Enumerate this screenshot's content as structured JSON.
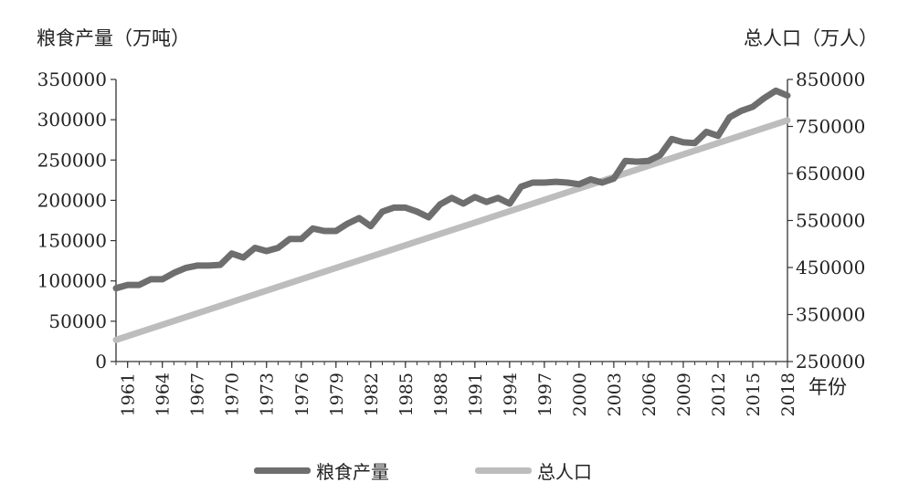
{
  "chart_data": {
    "type": "line",
    "left_axis_label": "粮食产量（万吨）",
    "right_axis_label": "总人口（万人）",
    "xlabel": "年份",
    "ylim_left": [
      0,
      350000
    ],
    "ylim_right": [
      250000,
      850000
    ],
    "y_ticks_left": [
      0,
      50000,
      100000,
      150000,
      200000,
      250000,
      300000,
      350000
    ],
    "y_ticks_right": [
      250000,
      350000,
      450000,
      550000,
      650000,
      750000,
      850000
    ],
    "x_ticks": [
      1961,
      1964,
      1967,
      1970,
      1973,
      1976,
      1979,
      1982,
      1985,
      1988,
      1991,
      1994,
      1997,
      2000,
      2003,
      2006,
      2009,
      2012,
      2015,
      2018
    ],
    "x_range": [
      1960,
      2018
    ],
    "grid": false,
    "legend_position": "bottom",
    "series": [
      {
        "name": "粮食产量",
        "axis": "left",
        "color": "#6e6e6e",
        "x": [
          1960,
          1961,
          1962,
          1963,
          1964,
          1965,
          1966,
          1967,
          1968,
          1969,
          1970,
          1971,
          1972,
          1973,
          1974,
          1975,
          1976,
          1977,
          1978,
          1979,
          1980,
          1981,
          1982,
          1983,
          1984,
          1985,
          1986,
          1987,
          1988,
          1989,
          1990,
          1991,
          1992,
          1993,
          1994,
          1995,
          1996,
          1997,
          1998,
          1999,
          2000,
          2001,
          2002,
          2003,
          2004,
          2005,
          2006,
          2007,
          2008,
          2009,
          2010,
          2011,
          2012,
          2013,
          2014,
          2015,
          2016,
          2017,
          2018
        ],
        "values": [
          91000,
          95000,
          95000,
          102000,
          102000,
          110000,
          116000,
          119000,
          119000,
          120000,
          134000,
          129000,
          141000,
          137000,
          141000,
          152000,
          152000,
          165000,
          162000,
          162000,
          171000,
          178000,
          168000,
          186000,
          191000,
          191000,
          186000,
          179000,
          195000,
          203000,
          196000,
          204000,
          198000,
          203000,
          196000,
          217000,
          222000,
          222000,
          223000,
          222000,
          220000,
          226000,
          222000,
          227000,
          249000,
          248000,
          249000,
          256000,
          276000,
          272000,
          271000,
          285000,
          280000,
          303000,
          311000,
          316000,
          327000,
          336000,
          330000
        ]
      },
      {
        "name": "总人口",
        "axis": "right",
        "color": "#bdbdbd",
        "x": [
          1960,
          2018
        ],
        "values": [
          296000,
          763000
        ]
      }
    ]
  }
}
